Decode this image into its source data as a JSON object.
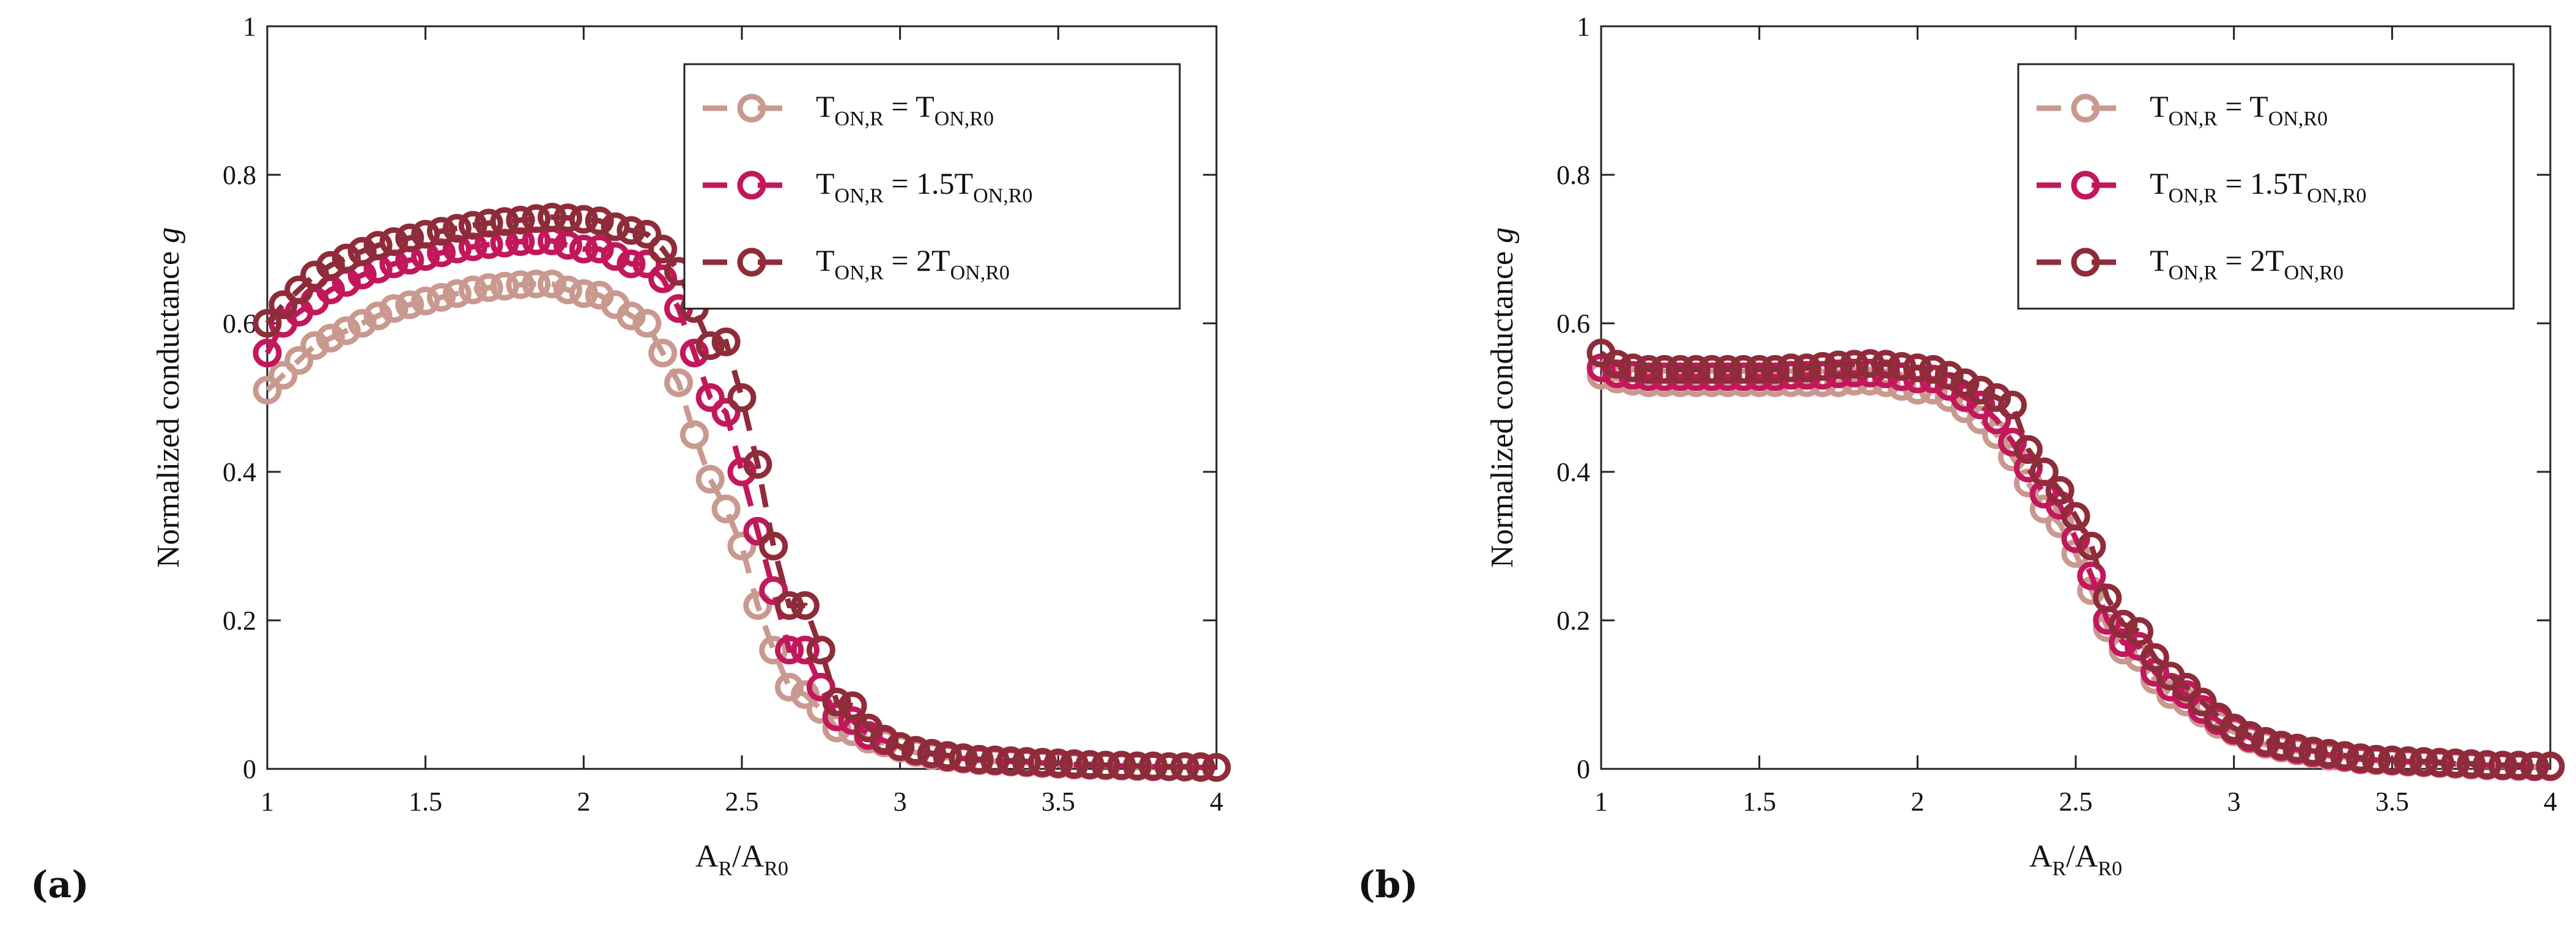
{
  "chart_data": [
    {
      "type": "line",
      "panel_label": "(a)",
      "xlabel": "A_R/A_R0",
      "ylabel": "Normalized conductance g",
      "xlim": [
        1,
        4
      ],
      "ylim": [
        0,
        1
      ],
      "xticks": [
        "1",
        "1.5",
        "2",
        "2.5",
        "3",
        "3.5",
        "4"
      ],
      "yticks": [
        "0",
        "0.2",
        "0.4",
        "0.6",
        "0.8",
        "1"
      ],
      "legend_position": "top-right",
      "x": [
        1.0,
        1.05,
        1.1,
        1.15,
        1.2,
        1.25,
        1.3,
        1.35,
        1.4,
        1.45,
        1.5,
        1.55,
        1.6,
        1.65,
        1.7,
        1.75,
        1.8,
        1.85,
        1.9,
        1.95,
        2.0,
        2.05,
        2.1,
        2.15,
        2.2,
        2.25,
        2.3,
        2.35,
        2.4,
        2.45,
        2.5,
        2.55,
        2.6,
        2.65,
        2.7,
        2.75,
        2.8,
        2.85,
        2.9,
        2.95,
        3.0,
        3.05,
        3.1,
        3.15,
        3.2,
        3.25,
        3.3,
        3.35,
        3.4,
        3.45,
        3.5,
        3.55,
        3.6,
        3.65,
        3.7,
        3.75,
        3.8,
        3.85,
        3.9,
        3.95,
        4.0
      ],
      "series": [
        {
          "name": "T_ON,R = T_ON,R0",
          "color": "#c9998f",
          "values": [
            0.51,
            0.53,
            0.55,
            0.57,
            0.58,
            0.59,
            0.6,
            0.61,
            0.62,
            0.625,
            0.63,
            0.635,
            0.64,
            0.645,
            0.648,
            0.65,
            0.652,
            0.653,
            0.653,
            0.645,
            0.64,
            0.638,
            0.625,
            0.61,
            0.6,
            0.56,
            0.52,
            0.45,
            0.39,
            0.35,
            0.3,
            0.22,
            0.16,
            0.11,
            0.1,
            0.08,
            0.055,
            0.05,
            0.04,
            0.035,
            0.028,
            0.022,
            0.018,
            0.015,
            0.013,
            0.011,
            0.01,
            0.009,
            0.008,
            0.007,
            0.006,
            0.005,
            0.005,
            0.004,
            0.004,
            0.003,
            0.003,
            0.003,
            0.002,
            0.002,
            0.002
          ]
        },
        {
          "name": "T_ON,R = 1.5T_ON,R0",
          "color": "#c2185b",
          "values": [
            0.56,
            0.6,
            0.615,
            0.63,
            0.645,
            0.655,
            0.665,
            0.673,
            0.68,
            0.685,
            0.69,
            0.695,
            0.7,
            0.703,
            0.706,
            0.708,
            0.71,
            0.711,
            0.711,
            0.705,
            0.7,
            0.7,
            0.69,
            0.68,
            0.68,
            0.66,
            0.62,
            0.56,
            0.5,
            0.48,
            0.4,
            0.32,
            0.24,
            0.16,
            0.16,
            0.11,
            0.07,
            0.065,
            0.045,
            0.038,
            0.03,
            0.024,
            0.02,
            0.016,
            0.014,
            0.012,
            0.011,
            0.01,
            0.009,
            0.008,
            0.007,
            0.006,
            0.005,
            0.005,
            0.004,
            0.004,
            0.003,
            0.003,
            0.003,
            0.002,
            0.002
          ]
        },
        {
          "name": "T_ON,R = 2T_ON,R0",
          "color": "#8e2c3a",
          "values": [
            0.6,
            0.625,
            0.645,
            0.665,
            0.678,
            0.688,
            0.697,
            0.705,
            0.71,
            0.715,
            0.72,
            0.724,
            0.728,
            0.732,
            0.735,
            0.737,
            0.739,
            0.741,
            0.743,
            0.742,
            0.74,
            0.738,
            0.73,
            0.725,
            0.72,
            0.7,
            0.67,
            0.62,
            0.57,
            0.575,
            0.5,
            0.41,
            0.3,
            0.22,
            0.22,
            0.16,
            0.09,
            0.085,
            0.055,
            0.04,
            0.03,
            0.025,
            0.021,
            0.018,
            0.015,
            0.013,
            0.012,
            0.011,
            0.01,
            0.009,
            0.008,
            0.007,
            0.006,
            0.005,
            0.005,
            0.004,
            0.004,
            0.003,
            0.003,
            0.003,
            0.002
          ]
        }
      ]
    },
    {
      "type": "line",
      "panel_label": "(b)",
      "xlabel": "A_R/A_R0",
      "ylabel": "Normalized conductance g",
      "xlim": [
        1,
        4
      ],
      "ylim": [
        0,
        1
      ],
      "xticks": [
        "1",
        "1.5",
        "2",
        "2.5",
        "3",
        "3.5",
        "4"
      ],
      "yticks": [
        "0",
        "0.2",
        "0.4",
        "0.6",
        "0.8",
        "1"
      ],
      "legend_position": "top-right",
      "x": [
        1.0,
        1.05,
        1.1,
        1.15,
        1.2,
        1.25,
        1.3,
        1.35,
        1.4,
        1.45,
        1.5,
        1.55,
        1.6,
        1.65,
        1.7,
        1.75,
        1.8,
        1.85,
        1.9,
        1.95,
        2.0,
        2.05,
        2.1,
        2.15,
        2.2,
        2.25,
        2.3,
        2.35,
        2.4,
        2.45,
        2.5,
        2.55,
        2.6,
        2.65,
        2.7,
        2.75,
        2.8,
        2.85,
        2.9,
        2.95,
        3.0,
        3.05,
        3.1,
        3.15,
        3.2,
        3.25,
        3.3,
        3.35,
        3.4,
        3.45,
        3.5,
        3.55,
        3.6,
        3.65,
        3.7,
        3.75,
        3.8,
        3.85,
        3.9,
        3.95,
        4.0
      ],
      "series": [
        {
          "name": "T_ON,R = T_ON,R0",
          "color": "#c9998f",
          "values": [
            0.53,
            0.525,
            0.522,
            0.52,
            0.52,
            0.52,
            0.52,
            0.52,
            0.52,
            0.52,
            0.52,
            0.52,
            0.52,
            0.52,
            0.52,
            0.52,
            0.522,
            0.522,
            0.52,
            0.515,
            0.51,
            0.51,
            0.5,
            0.485,
            0.47,
            0.45,
            0.42,
            0.385,
            0.35,
            0.33,
            0.29,
            0.24,
            0.19,
            0.16,
            0.15,
            0.12,
            0.1,
            0.09,
            0.075,
            0.06,
            0.05,
            0.04,
            0.033,
            0.028,
            0.024,
            0.02,
            0.017,
            0.015,
            0.012,
            0.011,
            0.01,
            0.009,
            0.008,
            0.007,
            0.006,
            0.005,
            0.004,
            0.004,
            0.003,
            0.003,
            0.003
          ]
        },
        {
          "name": "T_ON,R = 1.5T_ON,R0",
          "color": "#c2185b",
          "values": [
            0.54,
            0.532,
            0.53,
            0.528,
            0.528,
            0.528,
            0.528,
            0.528,
            0.528,
            0.528,
            0.528,
            0.528,
            0.53,
            0.53,
            0.53,
            0.532,
            0.533,
            0.533,
            0.532,
            0.528,
            0.525,
            0.525,
            0.515,
            0.5,
            0.49,
            0.47,
            0.44,
            0.405,
            0.37,
            0.355,
            0.31,
            0.26,
            0.2,
            0.17,
            0.165,
            0.13,
            0.11,
            0.1,
            0.08,
            0.065,
            0.052,
            0.042,
            0.035,
            0.03,
            0.026,
            0.022,
            0.019,
            0.016,
            0.013,
            0.012,
            0.011,
            0.01,
            0.009,
            0.008,
            0.007,
            0.006,
            0.005,
            0.004,
            0.004,
            0.003,
            0.003
          ]
        },
        {
          "name": "T_ON,R = 2T_ON,R0",
          "color": "#8e2c3a",
          "values": [
            0.56,
            0.545,
            0.54,
            0.538,
            0.538,
            0.538,
            0.538,
            0.538,
            0.538,
            0.538,
            0.538,
            0.538,
            0.54,
            0.54,
            0.542,
            0.544,
            0.545,
            0.546,
            0.545,
            0.542,
            0.54,
            0.538,
            0.53,
            0.52,
            0.51,
            0.5,
            0.49,
            0.43,
            0.4,
            0.375,
            0.34,
            0.3,
            0.23,
            0.195,
            0.185,
            0.15,
            0.125,
            0.11,
            0.09,
            0.07,
            0.055,
            0.045,
            0.037,
            0.032,
            0.028,
            0.024,
            0.021,
            0.018,
            0.015,
            0.013,
            0.012,
            0.011,
            0.01,
            0.009,
            0.008,
            0.007,
            0.006,
            0.005,
            0.005,
            0.004,
            0.004
          ]
        }
      ]
    }
  ]
}
